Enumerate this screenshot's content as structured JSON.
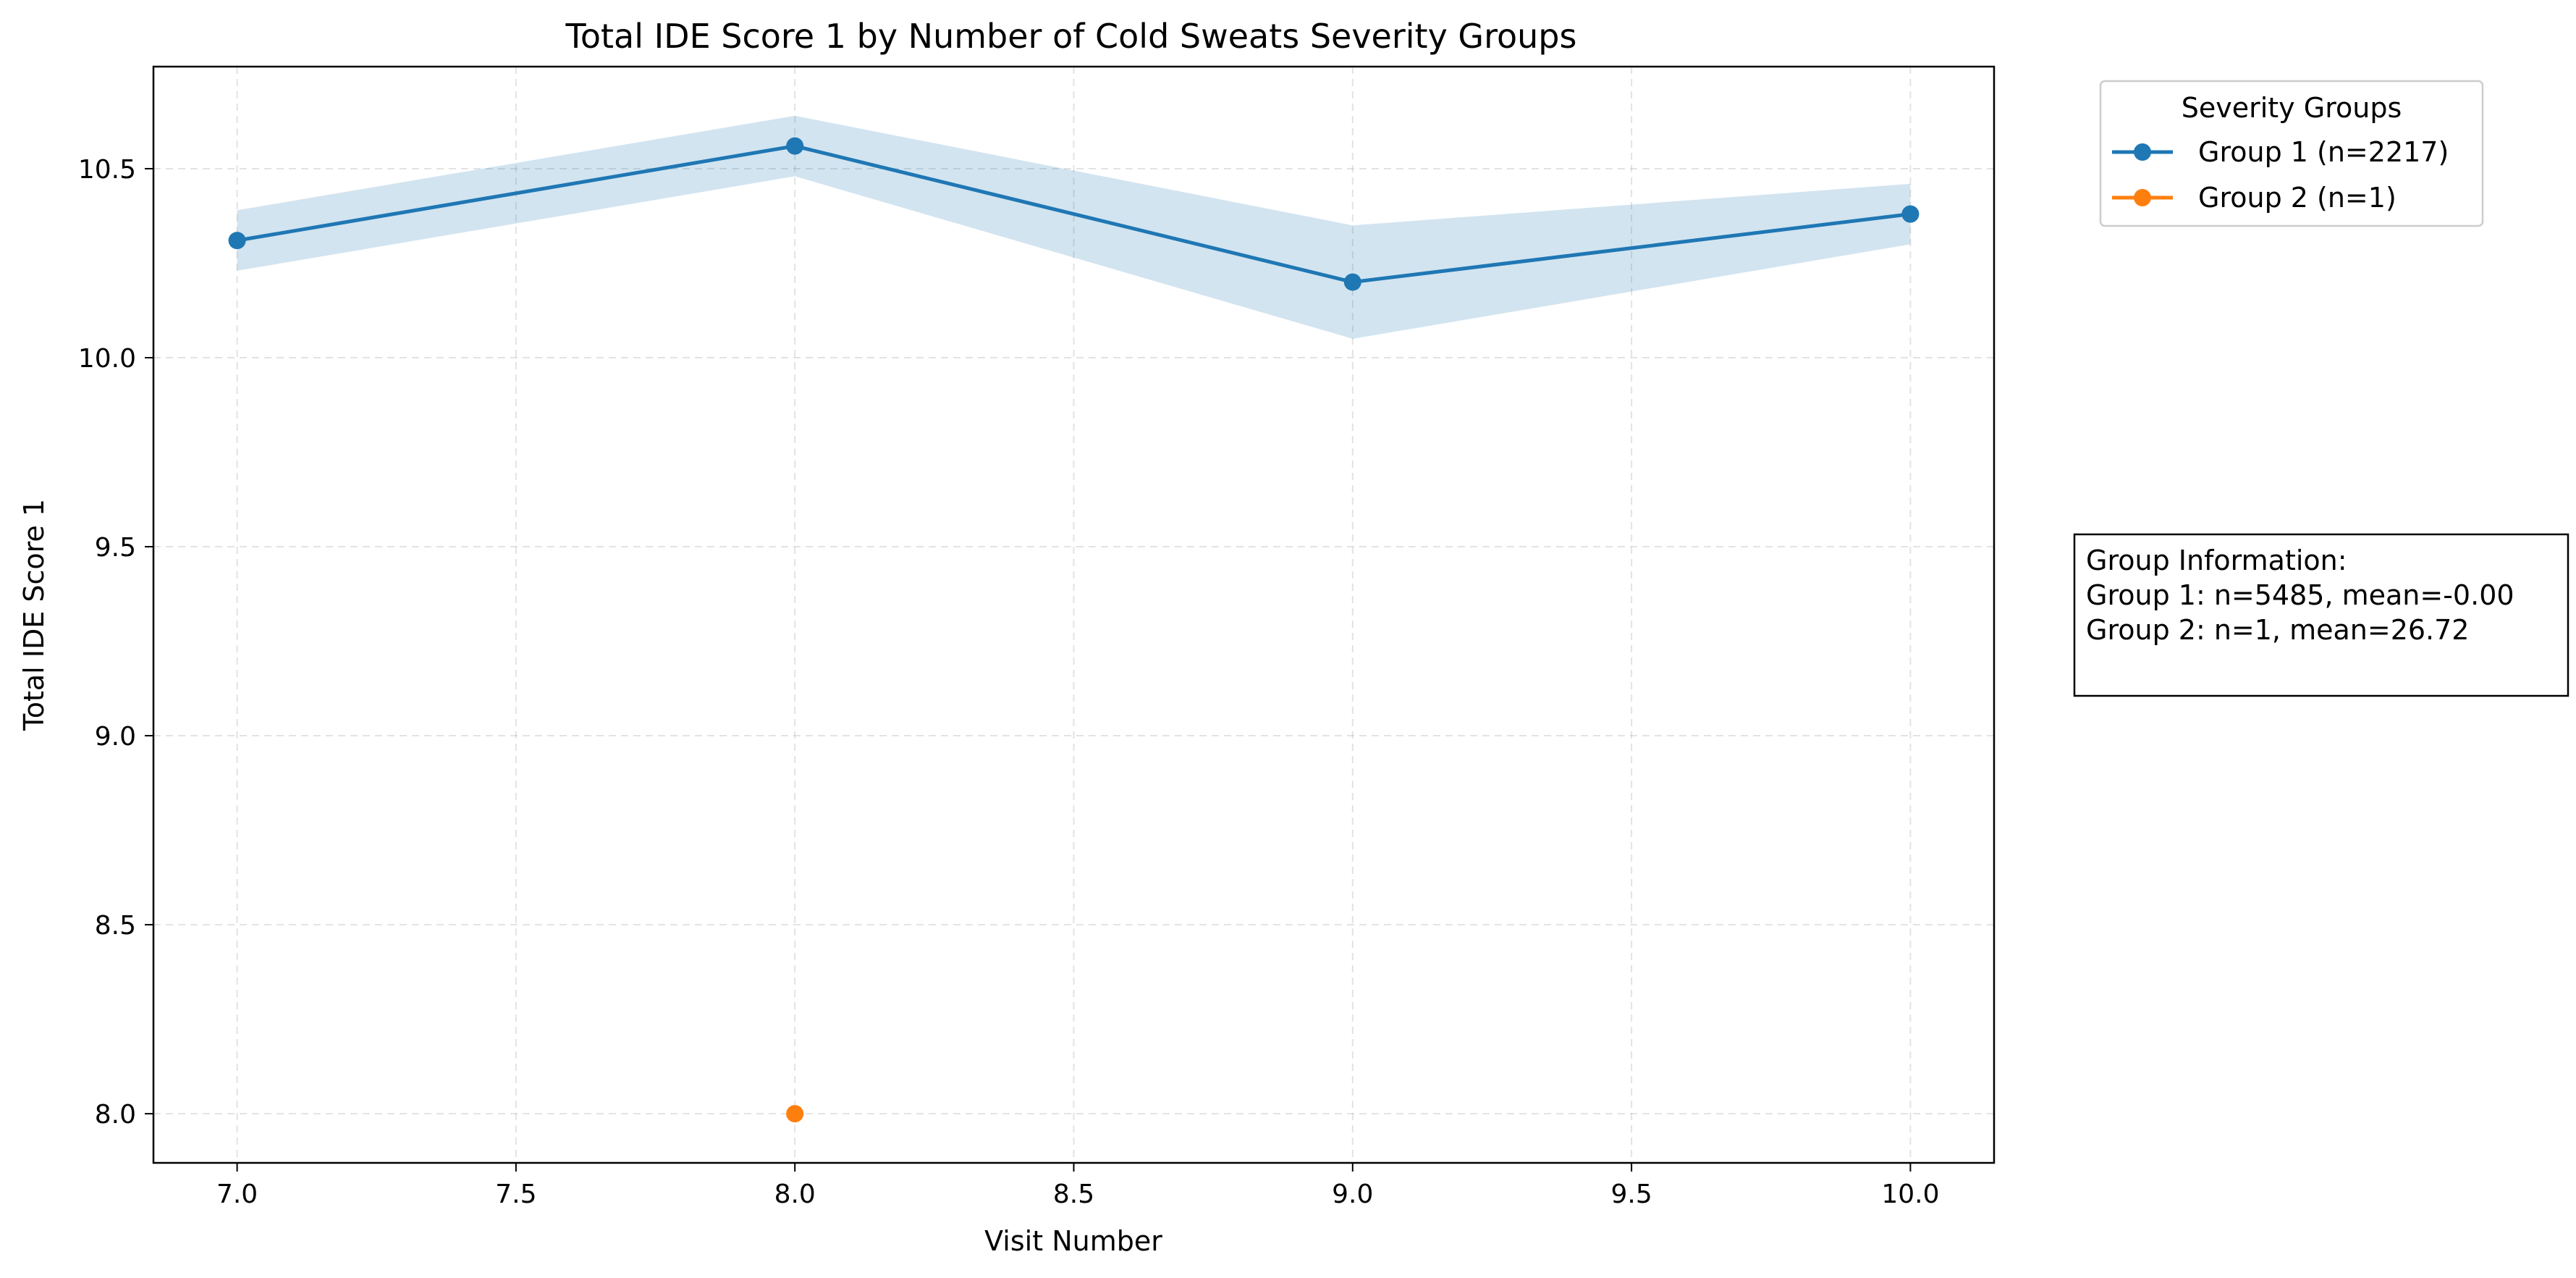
{
  "chart_data": {
    "type": "line",
    "title": "Total IDE Score 1 by Number of Cold Sweats Severity Groups",
    "xlabel": "Visit Number",
    "ylabel": "Total IDE Score 1",
    "xlim": [
      6.85,
      10.15
    ],
    "ylim": [
      7.87,
      10.77
    ],
    "xticks": [
      7.0,
      7.5,
      8.0,
      8.5,
      9.0,
      9.5,
      10.0
    ],
    "yticks": [
      8.0,
      8.5,
      9.0,
      9.5,
      10.0,
      10.5
    ],
    "xtick_labels": [
      "7.0",
      "7.5",
      "8.0",
      "8.5",
      "9.0",
      "9.5",
      "10.0"
    ],
    "ytick_labels": [
      "8.0",
      "8.5",
      "9.0",
      "9.5",
      "10.0",
      "10.5"
    ],
    "grid": true,
    "legend_title": "Severity Groups",
    "legend_position": "outside-top-right",
    "series": [
      {
        "name": "Group 1 (n=2217)",
        "color": "#1f77b4",
        "band_color": "#1f77b4",
        "x": [
          7,
          8,
          9,
          10
        ],
        "y": [
          10.31,
          10.56,
          10.2,
          10.38
        ],
        "lower": [
          10.23,
          10.48,
          10.05,
          10.3
        ],
        "upper": [
          10.39,
          10.64,
          10.35,
          10.46
        ]
      },
      {
        "name": "Group 2 (n=1)",
        "color": "#ff7f0e",
        "x": [
          8
        ],
        "y": [
          8.0
        ]
      }
    ],
    "annotation": {
      "lines": [
        "Group Information:",
        "Group 1: n=5485, mean=-0.00",
        "Group 2: n=1, mean=26.72"
      ]
    }
  }
}
